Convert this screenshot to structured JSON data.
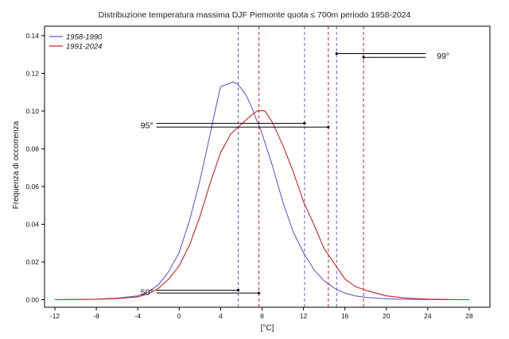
{
  "chart_data": {
    "type": "line",
    "title": "Distribuzione temperatura massima DJF Piemonte quota ≤ 700m periodo 1958-2024",
    "xlabel": "[°C]",
    "ylabel": "Frequenza di occorrenza",
    "xlim": [
      -13,
      30
    ],
    "ylim": [
      -0.004,
      0.145
    ],
    "x_ticks": [
      -12,
      -8,
      -4,
      0,
      4,
      8,
      12,
      16,
      20,
      24,
      28
    ],
    "x_tick_labels": [
      "-12",
      "-8",
      "-4",
      "0",
      "4",
      "8",
      "12",
      "16",
      "20",
      "24",
      "28"
    ],
    "y_ticks": [
      0.0,
      0.02,
      0.04,
      0.06,
      0.08,
      0.1,
      0.12,
      0.14
    ],
    "y_tick_labels": [
      "0.00",
      "0.02",
      "0.04",
      "0.06",
      "0.08",
      "0.10",
      "0.12",
      "0.14"
    ],
    "legend": {
      "position": "top-left"
    },
    "colors": {
      "s1": "#6a5acd",
      "s2": "#cc2222"
    },
    "series": [
      {
        "name": "1958-1990",
        "color": "#6a5acd",
        "x": [
          -12,
          -8,
          -6,
          -4,
          -3,
          -2,
          -1,
          0,
          1,
          2,
          3,
          3.5,
          4,
          4.5,
          5,
          5.2,
          5.6,
          6,
          6.5,
          7,
          7.5,
          8,
          9,
          10,
          11,
          12,
          13,
          14,
          15,
          16,
          17,
          18,
          20,
          22,
          24,
          26,
          28
        ],
        "y": [
          0.0,
          0.0003,
          0.0008,
          0.002,
          0.004,
          0.008,
          0.015,
          0.025,
          0.042,
          0.063,
          0.088,
          0.101,
          0.113,
          0.114,
          0.115,
          0.1155,
          0.1145,
          0.112,
          0.108,
          0.102,
          0.095,
          0.088,
          0.071,
          0.052,
          0.036,
          0.025,
          0.016,
          0.01,
          0.006,
          0.0035,
          0.002,
          0.0012,
          0.0005,
          0.0002,
          0.0001,
          0.0,
          0.0
        ]
      },
      {
        "name": "1991-2024",
        "color": "#cc2222",
        "x": [
          -12,
          -8,
          -6,
          -4,
          -3,
          -2,
          -1,
          0,
          1,
          2,
          3,
          4,
          5,
          6,
          7,
          7.5,
          8,
          8.3,
          9,
          10,
          11,
          12,
          13,
          14,
          15,
          16,
          17,
          18,
          19,
          20,
          22,
          24,
          26,
          28
        ],
        "y": [
          0.0,
          0.0002,
          0.0006,
          0.0015,
          0.003,
          0.006,
          0.011,
          0.018,
          0.029,
          0.044,
          0.062,
          0.078,
          0.088,
          0.093,
          0.098,
          0.1,
          0.1003,
          0.1,
          0.094,
          0.082,
          0.068,
          0.052,
          0.04,
          0.027,
          0.019,
          0.011,
          0.007,
          0.005,
          0.0035,
          0.002,
          0.0008,
          0.0003,
          0.0001,
          0.0
        ]
      }
    ],
    "percentile_lines": [
      {
        "series": "1958-1990",
        "percentile": 50,
        "x": 5.7
      },
      {
        "series": "1991-2024",
        "percentile": 50,
        "x": 7.7
      },
      {
        "series": "1958-1990",
        "percentile": 95,
        "x": 12.1
      },
      {
        "series": "1991-2024",
        "percentile": 95,
        "x": 14.4
      },
      {
        "series": "1958-1990",
        "percentile": 99,
        "x": 15.2
      },
      {
        "series": "1991-2024",
        "percentile": 99,
        "x": 17.8
      }
    ],
    "annotations": [
      {
        "text": "50°",
        "arrows": [
          {
            "x_from": -2.2,
            "x_to": 5.7,
            "y": 0.005
          },
          {
            "x_from": -2.2,
            "x_to": 7.7,
            "y": 0.0035
          }
        ]
      },
      {
        "text": "95°",
        "arrows": [
          {
            "x_from": -2.2,
            "x_to": 12.1,
            "y": 0.0935
          },
          {
            "x_from": -2.2,
            "x_to": 14.4,
            "y": 0.0915
          }
        ]
      },
      {
        "text": "99°",
        "arrows": [
          {
            "x_from": 23.8,
            "x_to": 15.2,
            "y": 0.1305
          },
          {
            "x_from": 23.8,
            "x_to": 17.8,
            "y": 0.1285
          }
        ]
      }
    ]
  }
}
